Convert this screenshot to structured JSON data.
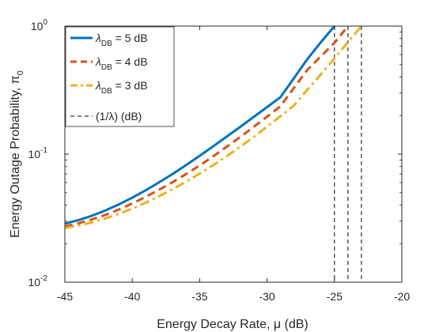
{
  "chart_data": {
    "type": "line",
    "xlabel": "Energy Decay Rate, μ (dB)",
    "ylabel": "Energy Outage Probability, π",
    "ylabel_subscript": "0",
    "xlim": [
      -45,
      -20
    ],
    "ylim": [
      0.01,
      1
    ],
    "yscale": "log",
    "grid": false,
    "legend_position": "top-left",
    "x_ticks": [
      "-45",
      "-40",
      "-35",
      "-30",
      "-25",
      "-20"
    ],
    "y_ticks": [
      {
        "value": 0.01,
        "base": "10",
        "exp": "-2"
      },
      {
        "value": 0.1,
        "base": "10",
        "exp": "-1"
      },
      {
        "value": 1,
        "base": "10",
        "exp": "0"
      }
    ],
    "series": [
      {
        "name": "λDB = 5 dB",
        "legend_symbol": "λ",
        "legend_sub": "DB",
        "legend_rest": " = 5 dB",
        "color": "#0072BD",
        "dash": "solid",
        "x": [
          -45,
          -44,
          -43,
          -42,
          -41,
          -40,
          -39,
          -38,
          -37,
          -36,
          -35,
          -34,
          -33,
          -32,
          -31,
          -30,
          -29,
          -28,
          -27,
          -26,
          -25
        ],
        "y": [
          0.0287,
          0.0305,
          0.033,
          0.0363,
          0.0405,
          0.0457,
          0.0522,
          0.0603,
          0.0701,
          0.0822,
          0.097,
          0.115,
          0.137,
          0.163,
          0.195,
          0.233,
          0.279,
          0.393,
          0.554,
          0.75,
          1.0
        ]
      },
      {
        "name": "λDB = 4 dB",
        "legend_symbol": "λ",
        "legend_sub": "DB",
        "legend_rest": " = 4 dB",
        "color": "#D95319",
        "dash": "dashed",
        "x": [
          -45,
          -44,
          -43,
          -42,
          -41,
          -40,
          -39,
          -38,
          -37,
          -36,
          -35,
          -34,
          -33,
          -32,
          -31,
          -30,
          -29,
          -28,
          -27,
          -26,
          -25,
          -24
        ],
        "y": [
          0.0273,
          0.0288,
          0.0309,
          0.0335,
          0.0369,
          0.0412,
          0.0464,
          0.0528,
          0.0605,
          0.07,
          0.0816,
          0.096,
          0.114,
          0.136,
          0.163,
          0.196,
          0.237,
          0.33,
          0.457,
          0.581,
          0.74,
          1.0
        ]
      },
      {
        "name": "λDB = 3 dB",
        "legend_symbol": "λ",
        "legend_sub": "DB",
        "legend_rest": " = 3 dB",
        "color": "#EDB120",
        "dash": "dashdot",
        "x": [
          -45,
          -44,
          -43,
          -42,
          -41,
          -40,
          -39,
          -38,
          -37,
          -36,
          -35,
          -34,
          -33,
          -32,
          -31,
          -30,
          -29,
          -28,
          -27,
          -26,
          -25,
          -24,
          -23
        ],
        "y": [
          0.0265,
          0.0277,
          0.0293,
          0.0315,
          0.0342,
          0.0376,
          0.0418,
          0.047,
          0.0533,
          0.061,
          0.0705,
          0.082,
          0.0963,
          0.114,
          0.136,
          0.164,
          0.198,
          0.24,
          0.32,
          0.42,
          0.56,
          0.75,
          1.0
        ]
      }
    ],
    "reference_lines": {
      "name": "(1/λ) (dB)",
      "color": "#000000",
      "dash": "dashed",
      "x": [
        -25,
        -24,
        -23
      ]
    }
  }
}
